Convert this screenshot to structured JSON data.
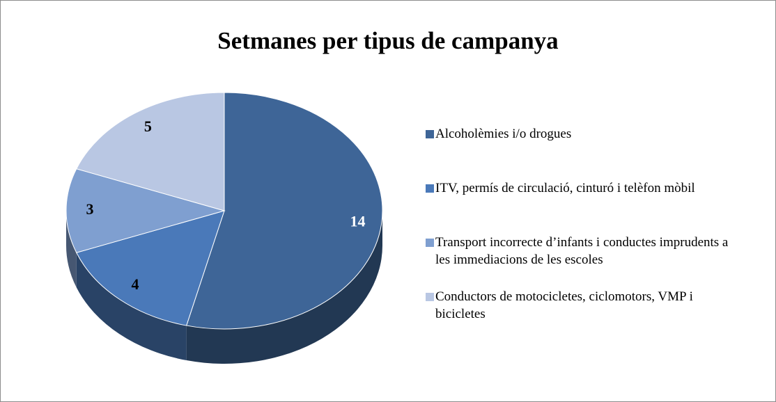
{
  "chart_data": {
    "type": "pie",
    "title": "Setmanes per tipus de campanya",
    "categories": [
      "Alcoholèmies i/o drogues",
      "ITV, permís de circulació, cinturó i telèfon mòbil",
      "Transport incorrecte d’infants i conductes imprudents a les immediacions de les escoles",
      "Conductors de motocicletes, ciclomotors, VMP i bicicletes"
    ],
    "values": [
      14,
      4,
      3,
      5
    ],
    "colors": [
      "#3e6597",
      "#4a79b9",
      "#7f9fd0",
      "#b9c7e3"
    ],
    "legend": "right"
  }
}
